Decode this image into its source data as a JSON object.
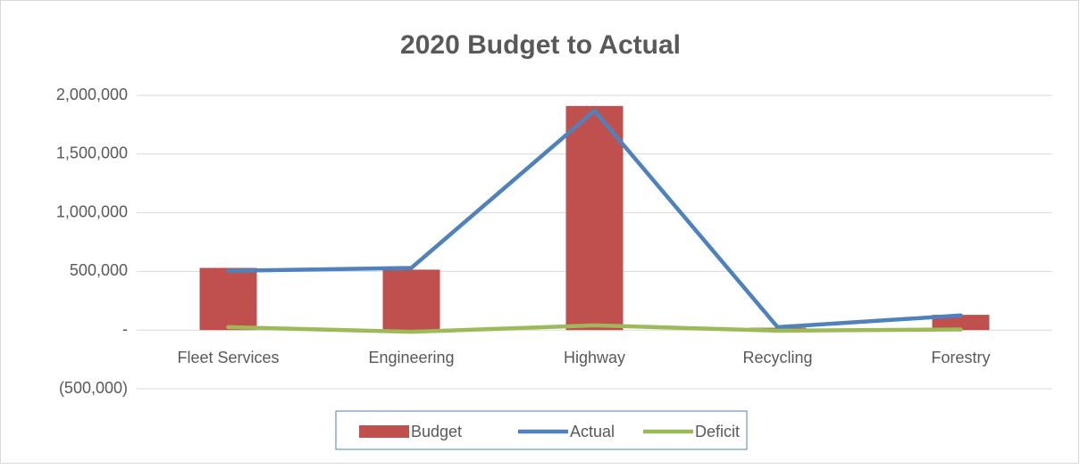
{
  "chart_data": {
    "type": "bar-line",
    "title": "2020 Budget to Actual",
    "categories": [
      "Fleet Services",
      "Engineering",
      "Highway",
      "Recycling",
      "Forestry"
    ],
    "series": [
      {
        "name": "Budget",
        "type": "bar",
        "color": "#c0504d",
        "values": [
          530000,
          515000,
          1910000,
          20000,
          130000
        ]
      },
      {
        "name": "Actual",
        "type": "line",
        "color": "#4f81bd",
        "values": [
          505000,
          530000,
          1870000,
          25000,
          125000
        ]
      },
      {
        "name": "Deficit",
        "type": "line",
        "color": "#9bbb59",
        "values": [
          25000,
          -15000,
          40000,
          -5000,
          5000
        ]
      }
    ],
    "ylim": [
      -500000,
      2000000
    ],
    "yticks": [
      {
        "value": -500000,
        "label": "(500,000)"
      },
      {
        "value": 0,
        "label": "-"
      },
      {
        "value": 500000,
        "label": "500,000"
      },
      {
        "value": 1000000,
        "label": "1,000,000"
      },
      {
        "value": 1500000,
        "label": "1,500,000"
      },
      {
        "value": 2000000,
        "label": "2,000,000"
      }
    ],
    "grid": true,
    "legend": "bottom"
  }
}
